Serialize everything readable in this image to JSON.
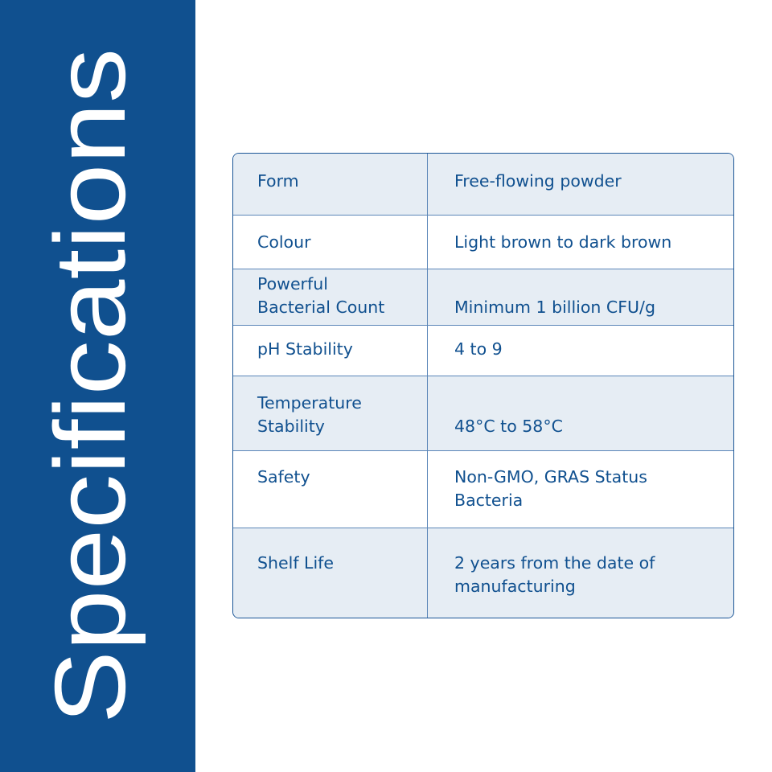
{
  "title": "Specifications",
  "colors": {
    "panel": "#10508f",
    "text": "#10508f",
    "row_shade": "#e6edf4"
  },
  "rows": [
    {
      "label": "Form",
      "value": "Free-flowing powder"
    },
    {
      "label": "Colour",
      "value": "Light brown to dark brown"
    },
    {
      "label": "Powerful\nBacterial Count",
      "value": "Minimum 1 billion CFU/g"
    },
    {
      "label": "pH Stability",
      "value": "4 to 9"
    },
    {
      "label": "Temperature\nStability",
      "value": "48°C to 58°C"
    },
    {
      "label": "Safety",
      "value": "Non-GMO, GRAS Status\nBacteria"
    },
    {
      "label": "Shelf Life",
      "value": "2 years from the date of\nmanufacturing"
    }
  ]
}
